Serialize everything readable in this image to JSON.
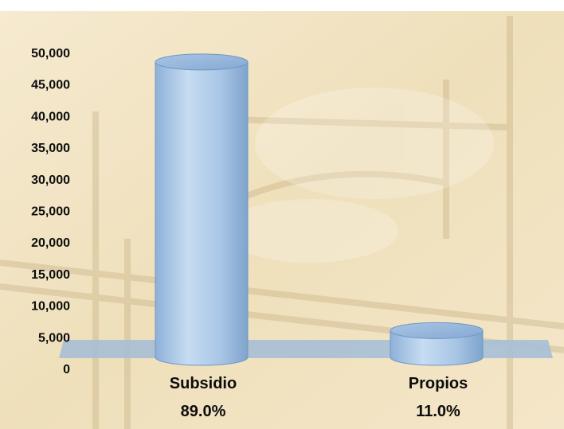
{
  "chart_data": {
    "type": "bar",
    "style": "3d-cylinder",
    "categories": [
      "Subsidio",
      "Propios"
    ],
    "category_labels": [
      "89.0%",
      "11.0%"
    ],
    "values": [
      48500,
      6000
    ],
    "y_ticks": [
      "0",
      "5,000",
      "10,000",
      "15,000",
      "20,000",
      "25,000",
      "30,000",
      "35,000",
      "40,000",
      "45,000",
      "50,000"
    ],
    "ylim": [
      0,
      50000
    ],
    "title": "",
    "xlabel": "",
    "ylabel": "",
    "grid": false,
    "legend": "none",
    "colors": {
      "bar_fill": "#a9c6e6",
      "bar_edge": "#6f98c4",
      "floor": "#a6bfd6",
      "background": "#f3e6c6",
      "text": "#0c0c0c"
    }
  }
}
